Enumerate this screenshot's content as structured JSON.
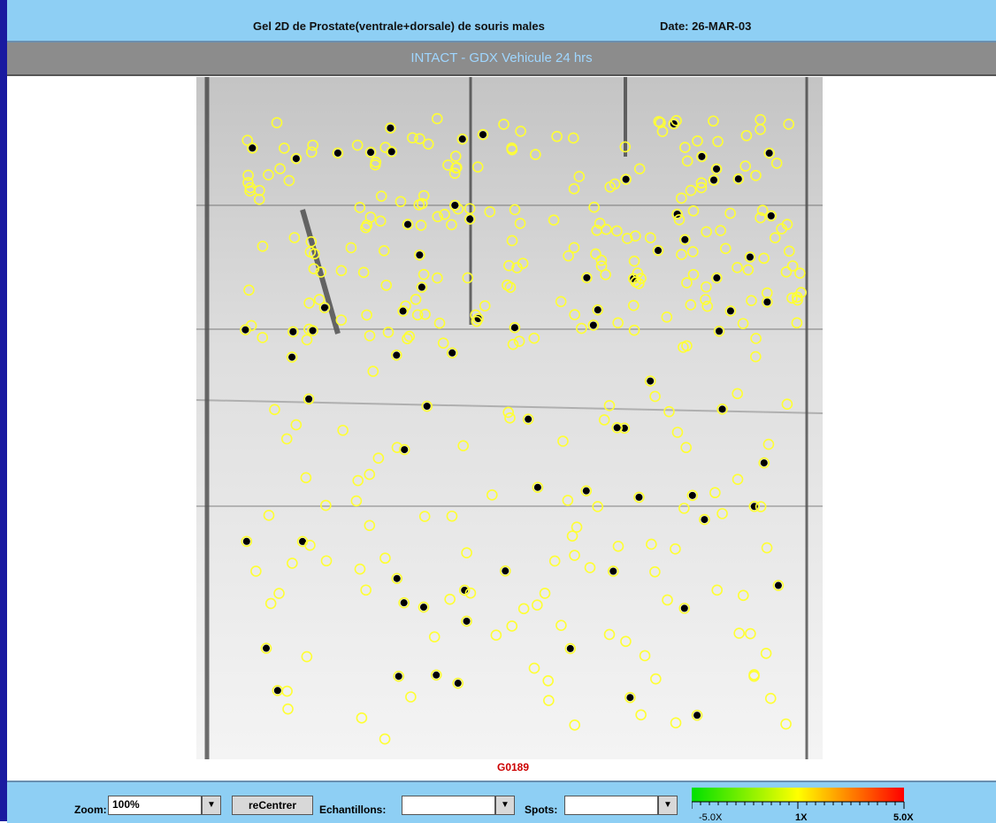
{
  "header": {
    "title": "Gel 2D de Prostate(ventrale+dorsale) de souris males",
    "date": "Date: 26-MAR-03"
  },
  "subtitle": "INTACT - GDX Vehicule 24 hrs",
  "gel": {
    "label": "G0189"
  },
  "toolbar": {
    "zoom_label": "Zoom:",
    "zoom_value": "100%",
    "recenter_button": "reCentrer",
    "samples_label": "Echantillons:",
    "spots_label": "Spots:",
    "scale_labels": [
      "-5.0X",
      "1X",
      "5.0X"
    ]
  }
}
